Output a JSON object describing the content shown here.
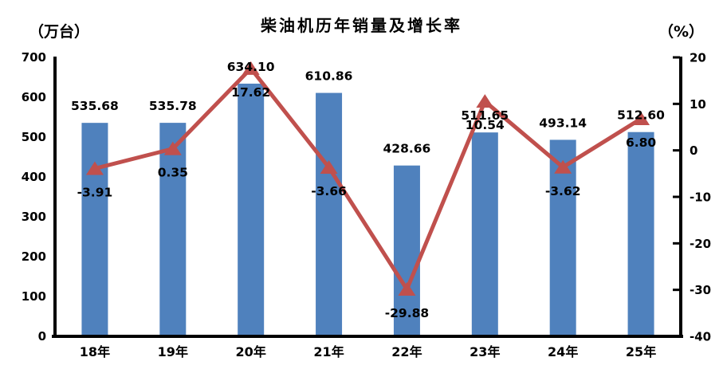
{
  "chart_data": {
    "type": "bar+line",
    "title": "柴油机历年销量及增长率",
    "categories": [
      "18年",
      "19年",
      "20年",
      "21年",
      "22年",
      "23年",
      "24年",
      "25年"
    ],
    "series": [
      {
        "id": "sales",
        "type": "bar",
        "axis": "left",
        "values": [
          535.68,
          535.78,
          634.1,
          610.86,
          428.66,
          511.65,
          493.14,
          512.6
        ],
        "labels": [
          "535.68",
          "535.78",
          "634.10",
          "610.86",
          "428.66",
          "511.65",
          "493.14",
          "512.60"
        ],
        "color": "#4F81BD"
      },
      {
        "id": "growth",
        "type": "line",
        "axis": "right",
        "marker": "triangle-up",
        "values": [
          -3.91,
          0.35,
          17.62,
          -3.66,
          -29.88,
          10.54,
          -3.62,
          6.8
        ],
        "labels": [
          "-3.91",
          "0.35",
          "17.62",
          "-3.66",
          "-29.88",
          "10.54",
          "-3.62",
          "6.80"
        ],
        "color": "#C0504D"
      }
    ],
    "left_axis": {
      "unit_label": "（万台）",
      "min": 0,
      "max": 700,
      "tick_step": 100,
      "tick_labels": [
        "700",
        "600",
        "500",
        "400",
        "300",
        "200",
        "100",
        "0"
      ]
    },
    "right_axis": {
      "unit_label": "（%）",
      "min": -40,
      "max": 20,
      "tick_step": 10,
      "tick_labels": [
        "20",
        "10",
        "0",
        "-10",
        "-20",
        "-30",
        "-40"
      ]
    },
    "grid": false,
    "legend": "none",
    "background": "#FFFFFF",
    "text_color": "#000000",
    "axis_color": "#000000"
  }
}
